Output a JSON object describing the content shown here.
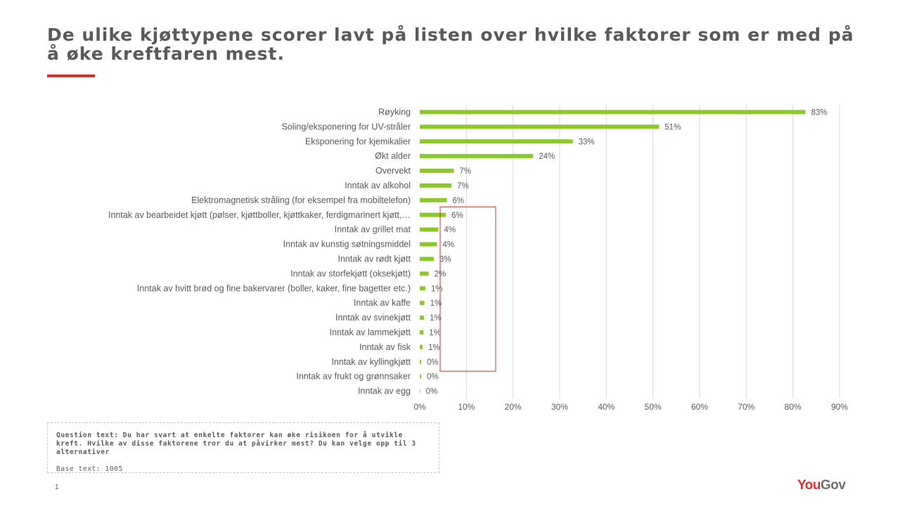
{
  "title": "De ulike kjøttypene scorer lavt på listen over hvilke faktorer som er med på å øke kreftfaren mest.",
  "colors": {
    "accent": "#d9302f",
    "bar": "#8ac926",
    "gridline": "#d9d9d9",
    "highlight_box": "#c0392b",
    "text": "#595959",
    "logo_gray": "#707070"
  },
  "chart_data": {
    "type": "bar",
    "orientation": "horizontal",
    "categories": [
      "Røyking",
      "Soling/eksponering for UV-stråler",
      "Eksponering for kjemikalier",
      "Økt alder",
      "Overvekt",
      "Inntak av alkohol",
      "Elektromagnetisk stråling (for eksempel fra mobiltelefon)",
      "Inntak av bearbeidet kjøtt (pølser, kjøttboller, kjøttkaker, ferdigmarinert kjøtt,…",
      "Inntak av grillet mat",
      "Inntak av kunstig søtningsmiddel",
      "Inntak av rødt kjøtt",
      "Inntak av storfekjøtt (oksekjøtt)",
      "Inntak av hvitt brød og fine bakervarer (boller, kaker, fine bagetter etc.)",
      "Inntak av kaffe",
      "Inntak av svinekjøtt",
      "Inntak av lammekjøtt",
      "Inntak av fisk",
      "Inntak av kyllingkjøtt",
      "Inntak av frukt og grønnsaker",
      "Inntak av egg"
    ],
    "values": [
      83,
      51,
      33,
      24,
      7,
      7,
      6,
      6,
      4,
      4,
      3,
      2,
      1,
      1,
      1,
      1,
      1,
      0,
      0,
      0
    ],
    "value_labels": [
      "83%",
      "51%",
      "33%",
      "24%",
      "7%",
      "7%",
      "6%",
      "6%",
      "4%",
      "4%",
      "3%",
      "2%",
      "1%",
      "1%",
      "1%",
      "1%",
      "1%",
      "0%",
      "0%",
      "0%"
    ],
    "bar_values_precise": [
      82.7,
      51.3,
      32.8,
      24.3,
      7.3,
      6.8,
      5.8,
      5.6,
      4.0,
      3.7,
      3.0,
      1.9,
      1.2,
      1.0,
      0.9,
      0.8,
      0.6,
      0.3,
      0.3,
      0.1
    ],
    "xlim": [
      0,
      90
    ],
    "xticks": [
      0,
      10,
      20,
      30,
      40,
      50,
      60,
      70,
      80,
      90
    ],
    "xtick_labels": [
      "0%",
      "10%",
      "20%",
      "30%",
      "40%",
      "50%",
      "60%",
      "70%",
      "80%",
      "90%"
    ],
    "grid": true,
    "highlight": {
      "from_category": "Inntak av bearbeidet kjøtt (pølser, kjøttboller, kjøttkaker, ferdigmarinert kjøtt,…",
      "to_category": "Inntak av kyllingkjøtt"
    }
  },
  "question": {
    "text": "Question text: Du har svart at enkelte faktorer kan øke risikoen for å utvikle kreft. Hvilke av disse faktorene tror du at påvirker mest? Du kan velge opp til 3 alternativer",
    "base": "Base text: 1005"
  },
  "page_number": "1",
  "logo": {
    "part1": "You",
    "part2": "Gov"
  }
}
